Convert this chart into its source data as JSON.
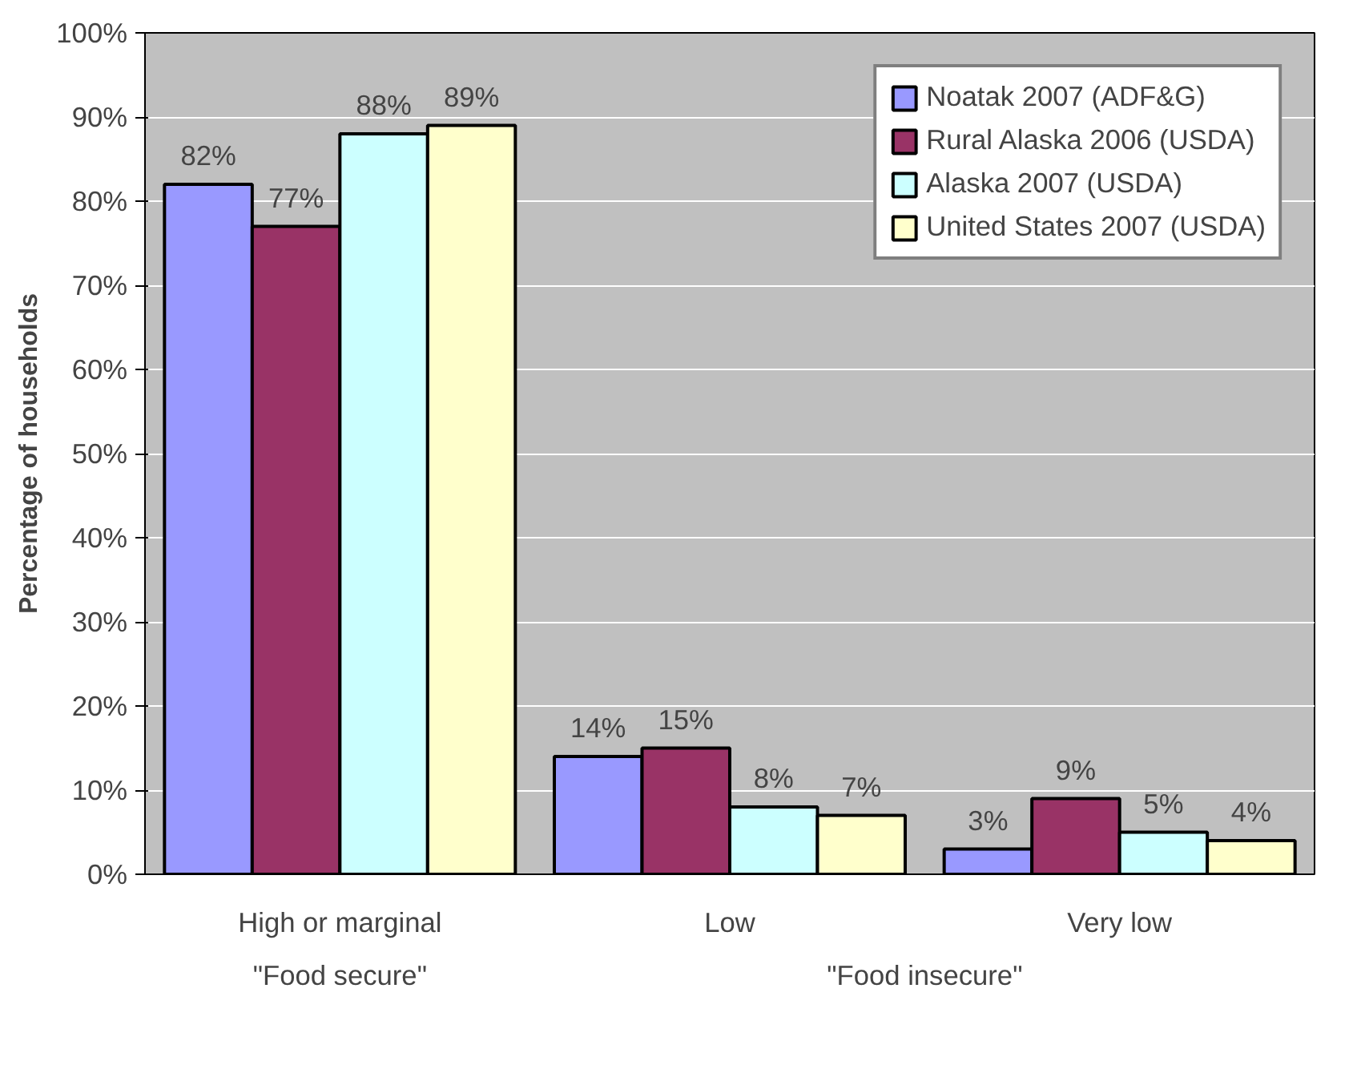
{
  "chart_data": {
    "type": "bar",
    "ylabel": "Percentage of households",
    "categories": [
      "High or marginal",
      "Low",
      "Very low"
    ],
    "series": [
      {
        "name": "Noatak 2007 (ADF&G)",
        "color": "#9999ff",
        "values": [
          82,
          14,
          3
        ],
        "value_labels": [
          "82%",
          "14%",
          "3%"
        ]
      },
      {
        "name": "Rural Alaska 2006 (USDA)",
        "color": "#993366",
        "values": [
          77,
          15,
          9
        ],
        "value_labels": [
          "77%",
          "15%",
          "9%"
        ]
      },
      {
        "name": "Alaska 2007 (USDA)",
        "color": "#ccffff",
        "values": [
          88,
          8,
          5
        ],
        "value_labels": [
          "88%",
          "8%",
          "5%"
        ]
      },
      {
        "name": "United States 2007 (USDA)",
        "color": "#ffffcc",
        "values": [
          89,
          7,
          4
        ],
        "value_labels": [
          "89%",
          "7%",
          "4%"
        ]
      }
    ],
    "ylim": [
      0,
      100
    ],
    "yticks": [
      {
        "value": 0,
        "label": "0%"
      },
      {
        "value": 10,
        "label": "10%"
      },
      {
        "value": 20,
        "label": "20%"
      },
      {
        "value": 30,
        "label": "30%"
      },
      {
        "value": 40,
        "label": "40%"
      },
      {
        "value": 50,
        "label": "50%"
      },
      {
        "value": 60,
        "label": "60%"
      },
      {
        "value": 70,
        "label": "70%"
      },
      {
        "value": 80,
        "label": "80%"
      },
      {
        "value": 90,
        "label": "90%"
      },
      {
        "value": 100,
        "label": "100%"
      }
    ],
    "annotations": [
      "\"Food secure\"",
      "\"Food insecure\""
    ],
    "grid": "y",
    "legend": "top right"
  }
}
